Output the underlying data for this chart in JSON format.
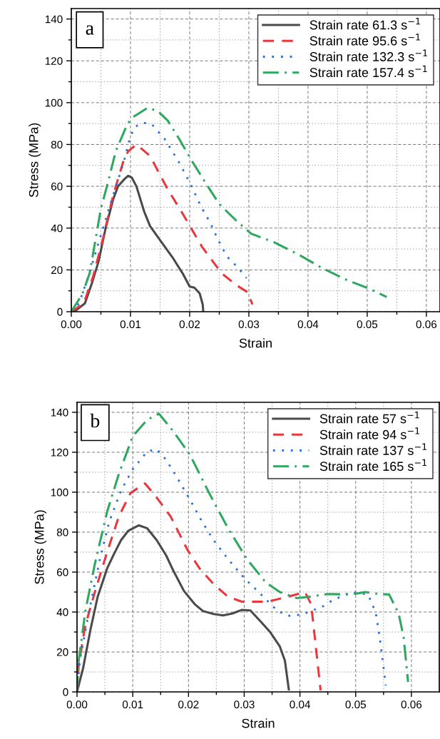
{
  "chart_data": [
    {
      "type": "line",
      "xlabel": "Strain",
      "ylabel": "Stress (MPa)",
      "annotations": [
        "a"
      ],
      "xlim": [
        0,
        0.0623
      ],
      "ylim": [
        0,
        145
      ],
      "xticks": [
        {
          "value": 0,
          "label": "0.00"
        },
        {
          "value": 0.01,
          "label": "0.01"
        },
        {
          "value": 0.02,
          "label": "0.02"
        },
        {
          "value": 0.03,
          "label": "0.03"
        },
        {
          "value": 0.04,
          "label": "0.04"
        },
        {
          "value": 0.05,
          "label": "0.05"
        },
        {
          "value": 0.06,
          "label": "0.06"
        }
      ],
      "yticks": [
        0,
        20,
        40,
        60,
        80,
        100,
        120,
        140
      ],
      "grid": true,
      "legend": "top right",
      "series": [
        {
          "name": "Strain rate 61.3 s$^{−1}$",
          "color": "#4a4a4a",
          "line_style": "solid",
          "x": [
            0,
            0.0008,
            0.0023,
            0.0035,
            0.0046,
            0.0058,
            0.0071,
            0.0079,
            0.009,
            0.0096,
            0.0102,
            0.011,
            0.0123,
            0.0133,
            0.0148,
            0.0171,
            0.0188,
            0.02,
            0.0208,
            0.0217,
            0.0222,
            0.0223
          ],
          "values": [
            0,
            0.7,
            4,
            13.8,
            24,
            40,
            54,
            60,
            63.5,
            65,
            64.2,
            60,
            48,
            41,
            35,
            26,
            18.4,
            12,
            11.5,
            8.7,
            3.5,
            0
          ]
        },
        {
          "name": "Strain rate 95.6 s$^{−1}$",
          "color": "#e8383d",
          "line_style": "dashed",
          "x": [
            0,
            0.0021,
            0.0037,
            0.0054,
            0.0071,
            0.0088,
            0.0096,
            0.011,
            0.0133,
            0.0163,
            0.0188,
            0.0221,
            0.0254,
            0.0279,
            0.0298,
            0.0306
          ],
          "values": [
            0,
            4,
            17,
            35.5,
            56,
            72,
            76.7,
            80,
            74.5,
            58.5,
            47,
            31,
            18.4,
            12.7,
            9.3,
            3.5
          ]
        },
        {
          "name": "Strain rate 132.3 s$^{−1}$",
          "color": "#2a6fdb",
          "line_style": "dotted",
          "x": [
            0,
            0.0013,
            0.0029,
            0.005,
            0.0071,
            0.0088,
            0.0098,
            0.0106,
            0.0119,
            0.0135,
            0.0158,
            0.0183,
            0.0202,
            0.0219,
            0.0235,
            0.0248,
            0.0263,
            0.0283,
            0.0296
          ],
          "values": [
            0,
            4,
            17,
            36.7,
            56,
            71,
            82,
            88,
            90.4,
            90,
            82.5,
            71,
            60.7,
            50.4,
            42.4,
            34.4,
            26.4,
            20.7,
            16.1
          ]
        },
        {
          "name": "Strain rate 157.4 s$^{−1}$",
          "color": "#2ea860",
          "line_style": "dashdot",
          "x": [
            0,
            0.0019,
            0.0031,
            0.005,
            0.0063,
            0.0075,
            0.0094,
            0.0102,
            0.0129,
            0.0146,
            0.0163,
            0.0183,
            0.0204,
            0.0229,
            0.025,
            0.0279,
            0.0304,
            0.0342,
            0.0383,
            0.0425,
            0.0467,
            0.0504,
            0.0533
          ],
          "values": [
            0,
            8.7,
            18.4,
            49.3,
            63,
            76.7,
            89.3,
            92.7,
            97.5,
            96,
            91.4,
            82.3,
            72,
            60.7,
            51.5,
            43.5,
            37.3,
            33.3,
            27.5,
            20.7,
            15,
            11,
            7
          ]
        }
      ]
    },
    {
      "type": "line",
      "xlabel": "Strain",
      "ylabel": "Stress (MPa)",
      "annotations": [
        "b"
      ],
      "xlim": [
        0,
        0.065
      ],
      "ylim": [
        0,
        145
      ],
      "xticks": [
        {
          "value": 0,
          "label": "0.00"
        },
        {
          "value": 0.01,
          "label": "0.01"
        },
        {
          "value": 0.02,
          "label": "0.02"
        },
        {
          "value": 0.03,
          "label": "0.03"
        },
        {
          "value": 0.04,
          "label": "0.04"
        },
        {
          "value": 0.05,
          "label": "0.05"
        },
        {
          "value": 0.06,
          "label": "0.06"
        }
      ],
      "yticks": [
        0,
        20,
        40,
        60,
        80,
        100,
        120,
        140
      ],
      "grid": true,
      "legend": "top right",
      "series": [
        {
          "name": "Strain rate 57 s$^{−1}$",
          "color": "#4a4a4a",
          "line_style": "solid",
          "x": [
            0,
            0.0011,
            0.0024,
            0.0037,
            0.0054,
            0.0066,
            0.0079,
            0.0092,
            0.0111,
            0.0126,
            0.0143,
            0.016,
            0.0173,
            0.0192,
            0.0211,
            0.0226,
            0.0245,
            0.0262,
            0.0279,
            0.0296,
            0.0311,
            0.033,
            0.0347,
            0.0364,
            0.0373,
            0.038
          ],
          "values": [
            0,
            12,
            31,
            47.6,
            61.8,
            68.9,
            76,
            80.7,
            83.4,
            81.9,
            76,
            68.3,
            60.6,
            50.5,
            44,
            40.5,
            39,
            38.3,
            39.3,
            41.1,
            40.8,
            35.1,
            29.8,
            22.7,
            15.6,
            1.2
          ]
        },
        {
          "name": "Strain rate 94 s$^{−1}$",
          "color": "#e8383d",
          "line_style": "dashed",
          "x": [
            0,
            0.0003,
            0.0015,
            0.0032,
            0.0054,
            0.0075,
            0.0096,
            0.0122,
            0.0143,
            0.0168,
            0.0198,
            0.022,
            0.0245,
            0.0271,
            0.0296,
            0.0343,
            0.0377,
            0.0409,
            0.042,
            0.0428,
            0.0437
          ],
          "values": [
            0,
            13.8,
            33.4,
            50,
            70,
            87.8,
            99.6,
            104.4,
            97.3,
            87.8,
            71.2,
            61.8,
            54,
            47.6,
            45.2,
            45.2,
            47.6,
            50,
            44,
            23.9,
            0.8
          ]
        },
        {
          "name": "Strain rate 137 s$^{−1}$",
          "color": "#2a6fdb",
          "line_style": "dotted",
          "x": [
            0,
            0.0005,
            0.002,
            0.0041,
            0.0058,
            0.0079,
            0.01,
            0.0126,
            0.0143,
            0.016,
            0.0181,
            0.0203,
            0.0224,
            0.0245,
            0.0271,
            0.03,
            0.0326,
            0.036,
            0.0381,
            0.0403,
            0.0441,
            0.0458,
            0.0492,
            0.0522,
            0.053,
            0.0537,
            0.0543,
            0.0549,
            0.0554
          ],
          "values": [
            0,
            15.6,
            38.1,
            66.5,
            85.4,
            100.8,
            111.5,
            120.4,
            121.5,
            116.2,
            106.7,
            96.1,
            85.4,
            76,
            66.5,
            57,
            50,
            40.5,
            38.1,
            38.7,
            42.8,
            45.8,
            50,
            48.8,
            44,
            38.1,
            27.5,
            14.4,
            3.2
          ]
        },
        {
          "name": "Strain rate 165 s$^{−1}$",
          "color": "#2ea860",
          "line_style": "dashdot",
          "x": [
            0,
            0.0003,
            0.0015,
            0.0032,
            0.0054,
            0.0075,
            0.01,
            0.0126,
            0.0147,
            0.0173,
            0.0203,
            0.0237,
            0.0271,
            0.0305,
            0.0339,
            0.0364,
            0.0394,
            0.0415,
            0.0449,
            0.0492,
            0.0517,
            0.0543,
            0.056,
            0.0577,
            0.0586,
            0.0594
          ],
          "values": [
            0,
            15.6,
            40.5,
            64.1,
            90.2,
            109.1,
            128,
            136.3,
            139.3,
            130.4,
            118.6,
            99.6,
            81.9,
            66.5,
            54.7,
            50,
            47,
            47.6,
            49,
            48.8,
            50,
            49,
            48.8,
            39.3,
            27.5,
            5
          ]
        }
      ]
    }
  ]
}
